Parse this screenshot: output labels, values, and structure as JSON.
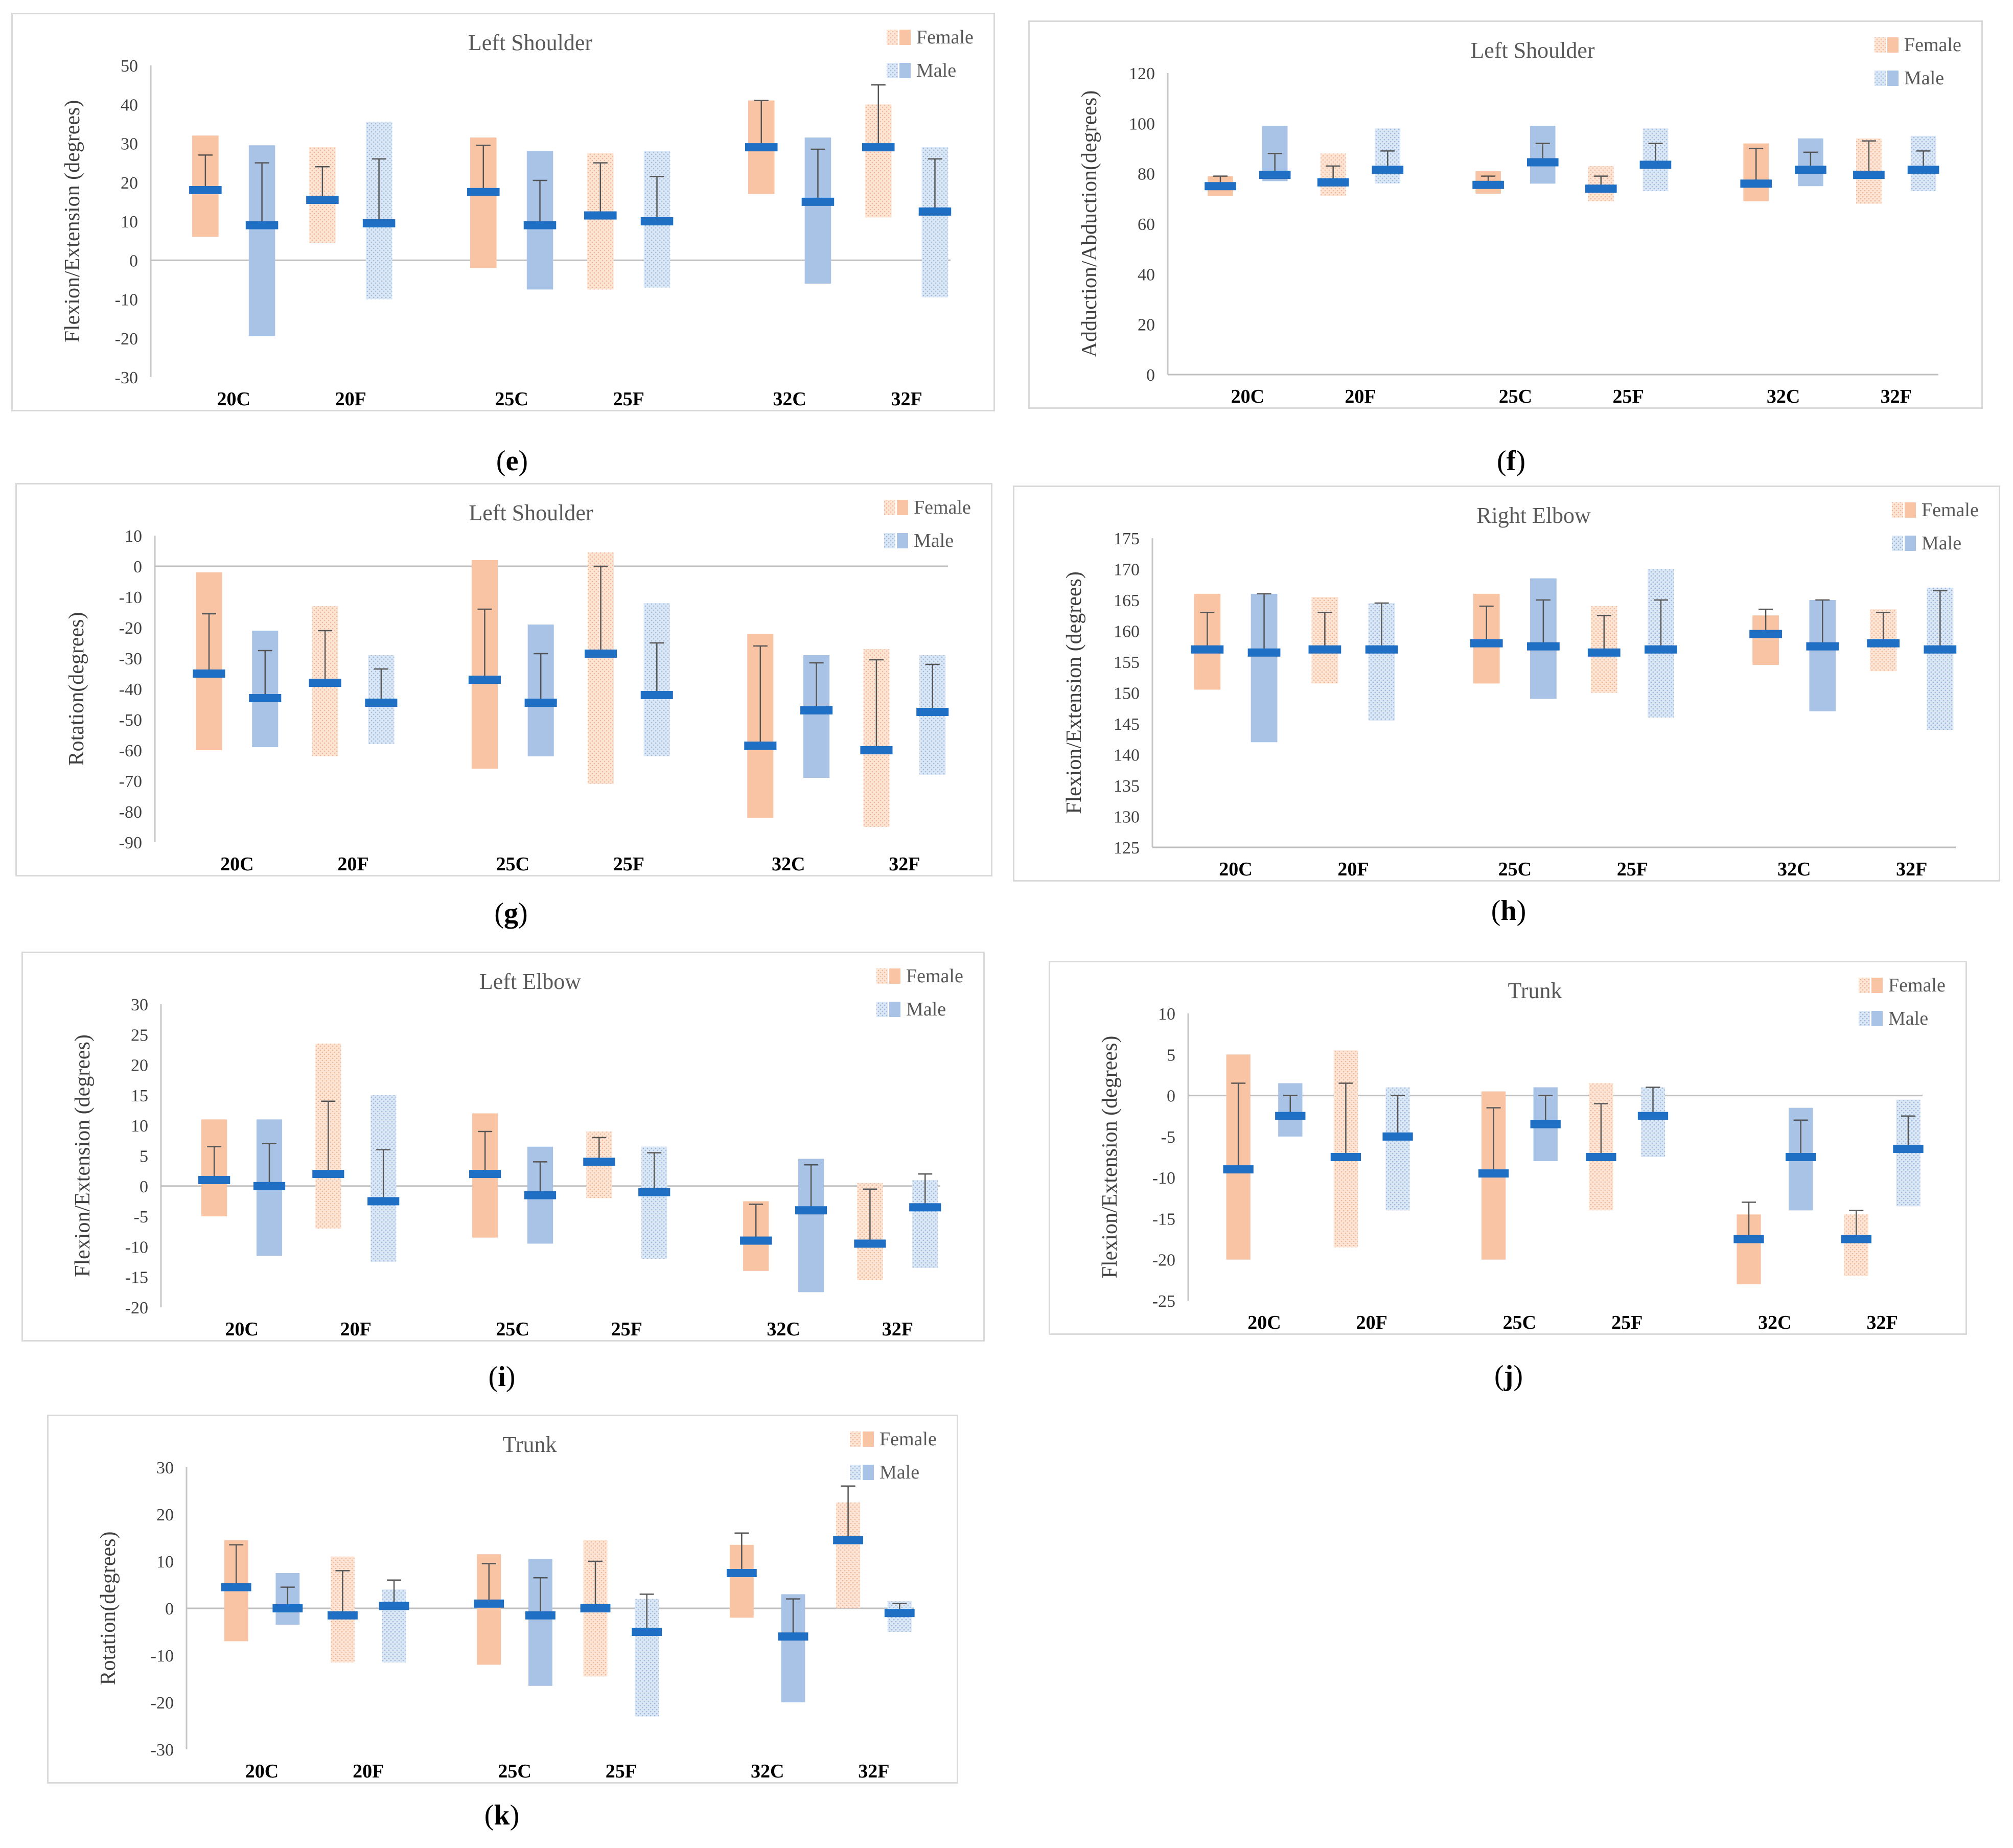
{
  "chart_data": [
    {
      "id": "e",
      "panel_label": "e",
      "type": "bar",
      "title": "Left Shoulder",
      "ylabel": "Flexion/Extension (degrees)",
      "xlabel": "",
      "ylim": [
        -30,
        50
      ],
      "ytick_step": 10,
      "categories": [
        "20C",
        "20F",
        "25C",
        "25F",
        "32C",
        "32F"
      ],
      "legend": [
        "Female",
        "Male"
      ],
      "legend_position": "top-right",
      "series": [
        {
          "name": "Female",
          "ranges": [
            [
              6,
              32
            ],
            [
              4.5,
              29
            ],
            [
              -2,
              31.5
            ],
            [
              -7.5,
              27.5
            ],
            [
              17,
              41
            ],
            [
              11,
              40
            ]
          ],
          "means": [
            18,
            15.5,
            17.5,
            11.5,
            29,
            29
          ],
          "error_tops": [
            27,
            24,
            29.5,
            25,
            41,
            45
          ]
        },
        {
          "name": "Male",
          "ranges": [
            [
              -19.5,
              29.5
            ],
            [
              -10,
              35.5
            ],
            [
              -7.5,
              28
            ],
            [
              -7,
              28
            ],
            [
              -6,
              31.5
            ],
            [
              -9.5,
              29
            ]
          ],
          "means": [
            9,
            9.5,
            9,
            10,
            15,
            12.5
          ],
          "error_tops": [
            25,
            26,
            20.5,
            21.5,
            28.5,
            26
          ]
        }
      ]
    },
    {
      "id": "f",
      "panel_label": "f",
      "type": "bar",
      "title": "Left Shoulder",
      "ylabel": "Adduction/Abduction(degrees)",
      "xlabel": "",
      "ylim": [
        0,
        120
      ],
      "ytick_step": 20,
      "categories": [
        "20C",
        "20F",
        "25C",
        "25F",
        "32C",
        "32F"
      ],
      "legend": [
        "Female",
        "Male"
      ],
      "legend_position": "top-right",
      "series": [
        {
          "name": "Female",
          "ranges": [
            [
              71,
              79
            ],
            [
              71,
              88
            ],
            [
              72,
              81
            ],
            [
              69,
              83
            ],
            [
              69,
              92
            ],
            [
              68,
              94
            ]
          ],
          "means": [
            75,
            76.5,
            75.5,
            74,
            76,
            79.5
          ],
          "error_tops": [
            79,
            83,
            79,
            79,
            90,
            93
          ]
        },
        {
          "name": "Male",
          "ranges": [
            [
              77,
              99
            ],
            [
              76,
              98
            ],
            [
              76,
              99
            ],
            [
              73,
              98
            ],
            [
              75,
              94
            ],
            [
              73,
              95
            ]
          ],
          "means": [
            79.5,
            81.5,
            84.5,
            83.5,
            81.5,
            81.5
          ],
          "error_tops": [
            88,
            89,
            92,
            92,
            88.5,
            89
          ]
        }
      ]
    },
    {
      "id": "g",
      "panel_label": "g",
      "type": "bar",
      "title": "Left Shoulder",
      "ylabel": "Rotation(degrees)",
      "xlabel": "",
      "ylim": [
        -90,
        10
      ],
      "ytick_step": 10,
      "categories": [
        "20C",
        "20F",
        "25C",
        "25F",
        "32C",
        "32F"
      ],
      "legend": [
        "Female",
        "Male"
      ],
      "legend_position": "top-right",
      "series": [
        {
          "name": "Female",
          "ranges": [
            [
              -60,
              -2
            ],
            [
              -62,
              -13
            ],
            [
              -66,
              2
            ],
            [
              -71,
              4.5
            ],
            [
              -82,
              -22
            ],
            [
              -85,
              -27
            ]
          ],
          "means": [
            -35,
            -38,
            -37,
            -28.5,
            -58.5,
            -60
          ],
          "error_tops": [
            -15.5,
            -21,
            -14,
            0,
            -26,
            -30.5
          ]
        },
        {
          "name": "Male",
          "ranges": [
            [
              -59,
              -21
            ],
            [
              -58,
              -29
            ],
            [
              -62,
              -19
            ],
            [
              -62,
              -12
            ],
            [
              -69,
              -29
            ],
            [
              -68,
              -29
            ]
          ],
          "means": [
            -43,
            -44.5,
            -44.5,
            -42,
            -47,
            -47.5
          ],
          "error_tops": [
            -27.5,
            -33.5,
            -28.5,
            -25,
            -31.5,
            -32
          ]
        }
      ]
    },
    {
      "id": "h",
      "panel_label": "h",
      "type": "bar",
      "title": "Right Elbow",
      "ylabel": "Flexion/Extension (degrees)",
      "xlabel": "",
      "ylim": [
        125,
        175
      ],
      "ytick_step": 5,
      "categories": [
        "20C",
        "20F",
        "25C",
        "25F",
        "32C",
        "32F"
      ],
      "legend": [
        "Female",
        "Male"
      ],
      "legend_position": "top-right",
      "series": [
        {
          "name": "Female",
          "ranges": [
            [
              150.5,
              166
            ],
            [
              151.5,
              165.5
            ],
            [
              151.5,
              166
            ],
            [
              150,
              164
            ],
            [
              154.5,
              162.5
            ],
            [
              153.5,
              163.5
            ]
          ],
          "means": [
            157,
            157,
            158,
            156.5,
            159.5,
            158
          ],
          "error_tops": [
            163,
            163,
            164,
            162.5,
            163.5,
            163
          ]
        },
        {
          "name": "Male",
          "ranges": [
            [
              142,
              166
            ],
            [
              145.5,
              164.5
            ],
            [
              149,
              168.5
            ],
            [
              146,
              170
            ],
            [
              147,
              165
            ],
            [
              144,
              167
            ]
          ],
          "means": [
            156.5,
            157,
            157.5,
            157,
            157.5,
            157
          ],
          "error_tops": [
            166,
            164.5,
            165,
            165,
            165,
            166.5
          ]
        }
      ]
    },
    {
      "id": "i",
      "panel_label": "i",
      "type": "bar",
      "title": "Left Elbow",
      "ylabel": "Flexion/Extension (degrees)",
      "xlabel": "",
      "ylim": [
        -20,
        30
      ],
      "ytick_step": 5,
      "categories": [
        "20C",
        "20F",
        "25C",
        "25F",
        "32C",
        "32F"
      ],
      "legend": [
        "Female",
        "Male"
      ],
      "legend_position": "top-right",
      "series": [
        {
          "name": "Female",
          "ranges": [
            [
              -5,
              11
            ],
            [
              -7,
              23.5
            ],
            [
              -8.5,
              12
            ],
            [
              -2,
              9
            ],
            [
              -14,
              -2.5
            ],
            [
              -15.5,
              0.5
            ]
          ],
          "means": [
            1,
            2,
            2,
            4,
            -9,
            -9.5
          ],
          "error_tops": [
            6.5,
            14,
            9,
            8,
            -3,
            -0.5
          ]
        },
        {
          "name": "Male",
          "ranges": [
            [
              -11.5,
              11
            ],
            [
              -12.5,
              15
            ],
            [
              -9.5,
              6.5
            ],
            [
              -12,
              6.5
            ],
            [
              -17.5,
              4.5
            ],
            [
              -13.5,
              1
            ]
          ],
          "means": [
            0,
            -2.5,
            -1.5,
            -1,
            -4,
            -3.5
          ],
          "error_tops": [
            7,
            6,
            4,
            5.5,
            3.5,
            2
          ]
        }
      ]
    },
    {
      "id": "j",
      "panel_label": "j",
      "type": "bar",
      "title": "Trunk",
      "ylabel": "Flexion/Extension (degrees)",
      "xlabel": "",
      "ylim": [
        -25,
        10
      ],
      "ytick_step": 5,
      "categories": [
        "20C",
        "20F",
        "25C",
        "25F",
        "32C",
        "32F"
      ],
      "legend": [
        "Female",
        "Male"
      ],
      "legend_position": "top-right",
      "series": [
        {
          "name": "Female",
          "ranges": [
            [
              -20,
              5
            ],
            [
              -18.5,
              5.5
            ],
            [
              -20,
              0.5
            ],
            [
              -14,
              1.5
            ],
            [
              -23,
              -14.5
            ],
            [
              -22,
              -14.5
            ]
          ],
          "means": [
            -9,
            -7.5,
            -9.5,
            -7.5,
            -17.5,
            -17.5
          ],
          "error_tops": [
            1.5,
            1.5,
            -1.5,
            -1,
            -13,
            -14
          ]
        },
        {
          "name": "Male",
          "ranges": [
            [
              -5,
              1.5
            ],
            [
              -14,
              1
            ],
            [
              -8,
              1
            ],
            [
              -7.5,
              1
            ],
            [
              -14,
              -1.5
            ],
            [
              -13.5,
              -0.5
            ]
          ],
          "means": [
            -2.5,
            -5,
            -3.5,
            -2.5,
            -7.5,
            -6.5
          ],
          "error_tops": [
            0,
            0,
            0,
            1,
            -3,
            -2.5
          ]
        }
      ]
    },
    {
      "id": "k",
      "panel_label": "k",
      "type": "bar",
      "title": "Trunk",
      "ylabel": "Rotation(degrees)",
      "xlabel": "",
      "ylim": [
        -30,
        30
      ],
      "ytick_step": 10,
      "categories": [
        "20C",
        "20F",
        "25C",
        "25F",
        "32C",
        "32F"
      ],
      "legend": [
        "Female",
        "Male"
      ],
      "legend_position": "top-right",
      "series": [
        {
          "name": "Female",
          "ranges": [
            [
              -7,
              14.5
            ],
            [
              -11.5,
              11
            ],
            [
              -12,
              11.5
            ],
            [
              -14.5,
              14.5
            ],
            [
              -2,
              13.5
            ],
            [
              0,
              22.5
            ]
          ],
          "means": [
            4.5,
            -1.5,
            1,
            0,
            7.5,
            14.5
          ],
          "error_tops": [
            13.5,
            8,
            9.5,
            10,
            16,
            26
          ]
        },
        {
          "name": "Male",
          "ranges": [
            [
              -3.5,
              7.5
            ],
            [
              -11.5,
              4
            ],
            [
              -16.5,
              10.5
            ],
            [
              -23,
              2
            ],
            [
              -20,
              3
            ],
            [
              -5,
              1.5
            ]
          ],
          "means": [
            0,
            0.5,
            -1.5,
            -5,
            -6,
            -1
          ],
          "error_tops": [
            4.5,
            6,
            6.5,
            3,
            2,
            1
          ]
        }
      ]
    }
  ],
  "colors": {
    "female_solid": "#f8c4a4",
    "female_light": "#fde5d6",
    "male_solid": "#a9c3e6",
    "male_light": "#dbe7f5",
    "mean_bar": "#1f6fc4",
    "whisker": "#555555",
    "axis": "#c6c6c6",
    "zero_line": "#bfbfbf",
    "frame": "#d9d9d9"
  }
}
